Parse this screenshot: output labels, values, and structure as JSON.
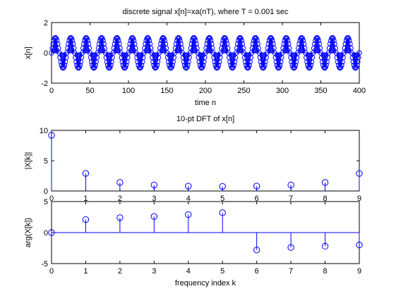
{
  "chart_data": [
    {
      "type": "scatter",
      "subtype": "stem",
      "title": "discrete signal x[n]=xa(nT), where T = 0.001 sec",
      "xlabel": "time n",
      "ylabel": "x[n]",
      "xlim": [
        0,
        400
      ],
      "ylim": [
        -2,
        2
      ],
      "xticks": [
        "0",
        "50",
        "100",
        "150",
        "200",
        "250",
        "300",
        "350",
        "400"
      ],
      "yticks": [
        "-2",
        "0",
        "2"
      ],
      "series": [
        {
          "color": "#0000ff",
          "marker": "circle",
          "n": [
            0,
            1,
            2,
            3,
            4,
            5,
            6,
            7,
            8,
            9,
            10,
            11,
            12,
            13,
            14,
            15,
            16,
            17,
            18,
            19,
            20,
            21,
            22,
            23,
            24,
            25,
            26,
            27,
            28,
            29,
            30,
            31,
            32,
            33,
            34,
            35,
            36,
            37,
            38,
            39,
            40,
            41,
            42,
            43,
            44,
            45,
            46,
            47,
            48,
            49,
            50,
            51,
            52,
            53,
            54,
            55,
            56,
            57,
            58,
            59,
            60,
            61,
            62,
            63,
            64,
            65,
            66,
            67,
            68,
            69,
            70,
            71,
            72,
            73,
            74,
            75,
            76,
            77,
            78,
            79,
            80,
            81,
            82,
            83,
            84,
            85,
            86,
            87,
            88,
            89,
            90,
            91,
            92,
            93,
            94,
            95,
            96,
            97,
            98,
            99,
            100,
            101,
            102,
            103,
            104,
            105,
            106,
            107,
            108,
            109,
            110,
            111,
            112,
            113,
            114,
            115,
            116,
            117,
            118,
            119,
            120,
            121,
            122,
            123,
            124,
            125,
            126,
            127,
            128,
            129,
            130,
            131,
            132,
            133,
            134,
            135,
            136,
            137,
            138,
            139,
            140,
            141,
            142,
            143,
            144,
            145,
            146,
            147,
            148,
            149,
            150,
            151,
            152,
            153,
            154,
            155,
            156,
            157,
            158,
            159,
            160,
            161,
            162,
            163,
            164,
            165,
            166,
            167,
            168,
            169,
            170,
            171,
            172,
            173,
            174,
            175,
            176,
            177,
            178,
            179,
            180,
            181,
            182,
            183,
            184,
            185,
            186,
            187,
            188,
            189,
            190,
            191,
            192,
            193,
            194,
            195,
            196,
            197,
            198,
            199,
            200,
            201,
            202,
            203,
            204,
            205,
            206,
            207,
            208,
            209,
            210,
            211,
            212,
            213,
            214,
            215,
            216,
            217,
            218,
            219,
            220,
            221,
            222,
            223,
            224,
            225,
            226,
            227,
            228,
            229,
            230,
            231,
            232,
            233,
            234,
            235,
            236,
            237,
            238,
            239,
            240,
            241,
            242,
            243,
            244,
            245,
            246,
            247,
            248,
            249,
            250,
            251,
            252,
            253,
            254,
            255,
            256,
            257,
            258,
            259,
            260,
            261,
            262,
            263,
            264,
            265,
            266,
            267,
            268,
            269,
            270,
            271,
            272,
            273,
            274,
            275,
            276,
            277,
            278,
            279,
            280,
            281,
            282,
            283,
            284,
            285,
            286,
            287,
            288,
            289,
            290,
            291,
            292,
            293,
            294,
            295,
            296,
            297,
            298,
            299,
            300,
            301,
            302,
            303,
            304,
            305,
            306,
            307,
            308,
            309,
            310,
            311,
            312,
            313,
            314,
            315,
            316,
            317,
            318,
            319,
            320,
            321,
            322,
            323,
            324,
            325,
            326,
            327,
            328,
            329,
            330,
            331,
            332,
            333,
            334,
            335,
            336,
            337,
            338,
            339,
            340,
            341,
            342,
            343,
            344,
            345,
            346,
            347,
            348,
            349,
            350,
            351,
            352,
            353,
            354,
            355,
            356,
            357,
            358,
            359,
            360,
            361,
            362,
            363,
            364,
            365,
            366,
            367,
            368,
            369,
            370,
            371,
            372,
            373,
            374,
            375,
            376,
            377,
            378,
            379,
            380,
            381,
            382,
            383,
            384,
            385,
            386,
            387,
            388,
            389,
            390,
            391,
            392,
            393,
            394,
            395,
            396,
            397,
            398,
            399,
            400
          ],
          "x": [
            0,
            0.309,
            0.588,
            0.809,
            0.951,
            1,
            0.951,
            0.809,
            0.588,
            0.309,
            0,
            -0.309,
            -0.588,
            -0.809,
            -0.951,
            -1,
            -0.951,
            -0.809,
            -0.588,
            -0.309,
            0,
            0.309,
            0.588,
            0.809,
            0.951,
            1,
            0.951,
            0.809,
            0.588,
            0.309,
            0,
            -0.309,
            -0.588,
            -0.809,
            -0.951,
            -1,
            -0.951,
            -0.809,
            -0.588,
            -0.309,
            0,
            0.309,
            0.588,
            0.809,
            0.951,
            1,
            0.951,
            0.809,
            0.588,
            0.309,
            0,
            -0.309,
            -0.588,
            -0.809,
            -0.951,
            -1,
            -0.951,
            -0.809,
            -0.588,
            -0.309,
            0,
            0.309,
            0.588,
            0.809,
            0.951,
            1,
            0.951,
            0.809,
            0.588,
            0.309,
            0,
            -0.309,
            -0.588,
            -0.809,
            -0.951,
            -1,
            -0.951,
            -0.809,
            -0.588,
            -0.309,
            0,
            0.309,
            0.588,
            0.809,
            0.951,
            1,
            0.951,
            0.809,
            0.588,
            0.309,
            0,
            -0.309,
            -0.588,
            -0.809,
            -0.951,
            -1,
            -0.951,
            -0.809,
            -0.588,
            -0.309,
            0,
            0.309,
            0.588,
            0.809,
            0.951,
            1,
            0.951,
            0.809,
            0.588,
            0.309,
            0,
            -0.309,
            -0.588,
            -0.809,
            -0.951,
            -1,
            -0.951,
            -0.809,
            -0.588,
            -0.309,
            0,
            0.309,
            0.588,
            0.809,
            0.951,
            1,
            0.951,
            0.809,
            0.588,
            0.309,
            0,
            -0.309,
            -0.588,
            -0.809,
            -0.951,
            -1,
            -0.951,
            -0.809,
            -0.588,
            -0.309,
            0,
            0.309,
            0.588,
            0.809,
            0.951,
            1,
            0.951,
            0.809,
            0.588,
            0.309,
            0,
            -0.309,
            -0.588,
            -0.809,
            -0.951,
            -1,
            -0.951,
            -0.809,
            -0.588,
            -0.309,
            0,
            0.309,
            0.588,
            0.809,
            0.951,
            1,
            0.951,
            0.809,
            0.588,
            0.309,
            0,
            -0.309,
            -0.588,
            -0.809,
            -0.951,
            -1,
            -0.951,
            -0.809,
            -0.588,
            -0.309,
            0,
            0.309,
            0.588,
            0.809,
            0.951,
            1,
            0.951,
            0.809,
            0.588,
            0.309,
            0,
            -0.309,
            -0.588,
            -0.809,
            -0.951,
            -1,
            -0.951,
            -0.809,
            -0.588,
            -0.309,
            0,
            0.309,
            0.588,
            0.809,
            0.951,
            1,
            0.951,
            0.809,
            0.588,
            0.309,
            0,
            -0.309,
            -0.588,
            -0.809,
            -0.951,
            -1,
            -0.951,
            -0.809,
            -0.588,
            -0.309,
            0,
            0.309,
            0.588,
            0.809,
            0.951,
            1,
            0.951,
            0.809,
            0.588,
            0.309,
            0,
            -0.309,
            -0.588,
            -0.809,
            -0.951,
            -1,
            -0.951,
            -0.809,
            -0.588,
            -0.309,
            0,
            0.309,
            0.588,
            0.809,
            0.951,
            1,
            0.951,
            0.809,
            0.588,
            0.309,
            0,
            -0.309,
            -0.588,
            -0.809,
            -0.951,
            -1,
            -0.951,
            -0.809,
            -0.588,
            -0.309,
            0,
            0.309,
            0.588,
            0.809,
            0.951,
            1,
            0.951,
            0.809,
            0.588,
            0.309,
            0,
            -0.309,
            -0.588,
            -0.809,
            -0.951,
            -1,
            -0.951,
            -0.809,
            -0.588,
            -0.309,
            0,
            0.309,
            0.588,
            0.809,
            0.951,
            1,
            0.951,
            0.809,
            0.588,
            0.309,
            0,
            -0.309,
            -0.588,
            -0.809,
            -0.951,
            -1,
            -0.951,
            -0.809,
            -0.588,
            -0.309,
            0,
            0.309,
            0.588,
            0.809,
            0.951,
            1,
            0.951,
            0.809,
            0.588,
            0.309,
            0,
            -0.309,
            -0.588,
            -0.809,
            -0.951,
            -1,
            -0.951,
            -0.809,
            -0.588,
            -0.309,
            0,
            0.309,
            0.588,
            0.809,
            0.951,
            1,
            0.951,
            0.809,
            0.588,
            0.309,
            0,
            -0.309,
            -0.588,
            -0.809,
            -0.951,
            -1,
            -0.951,
            -0.809,
            -0.588,
            -0.309,
            0,
            0.309,
            0.588,
            0.809,
            0.951,
            1,
            0.951,
            0.809,
            0.588,
            0.309,
            0,
            -0.309,
            -0.588,
            -0.809,
            -0.951,
            -1,
            -0.951,
            -0.809,
            -0.588,
            -0.309,
            0,
            0.309,
            0.588,
            0.809,
            0.951,
            1,
            0.951,
            0.809,
            0.588,
            0.309,
            0,
            -0.309,
            -0.588,
            -0.809,
            -0.951,
            -1,
            -0.951,
            -0.809,
            -0.588,
            -0.309,
            0,
            0.309,
            0.588,
            0.809,
            0.951,
            1,
            0.951,
            0.809,
            0.588,
            0.309,
            0,
            -0.309,
            -0.588,
            -0.809,
            -0.951,
            -1,
            -0.951,
            -0.809,
            -0.588,
            -0.309,
            0
          ]
        }
      ]
    },
    {
      "type": "scatter",
      "subtype": "stem",
      "title": "10-pt DFT of x[n]",
      "xlabel": "",
      "ylabel": "|X[k]|",
      "xlim": [
        0,
        9
      ],
      "ylim": [
        0,
        10
      ],
      "xticks": [
        "0",
        "1",
        "2",
        "3",
        "4",
        "5",
        "6",
        "7",
        "8",
        "9"
      ],
      "yticks": [
        "0",
        "5",
        "10"
      ],
      "series": [
        {
          "color": "#0000ff",
          "marker": "circle",
          "x": [
            0,
            1,
            2,
            3,
            4,
            5,
            6,
            7,
            8,
            9
          ],
          "y": [
            9.2,
            2.9,
            1.4,
            1.0,
            0.8,
            0.75,
            0.8,
            1.0,
            1.4,
            2.9
          ]
        }
      ]
    },
    {
      "type": "scatter",
      "subtype": "stem",
      "title": "",
      "xlabel": "frequency index k",
      "ylabel": "arg(X[k])",
      "xlim": [
        0,
        9
      ],
      "ylim": [
        -5,
        5
      ],
      "xticks": [
        "0",
        "1",
        "2",
        "3",
        "4",
        "5",
        "6",
        "7",
        "8",
        "9"
      ],
      "yticks": [
        "-5",
        "0",
        "5"
      ],
      "series": [
        {
          "color": "#0000ff",
          "marker": "circle",
          "x": [
            0,
            1,
            2,
            3,
            4,
            5,
            6,
            7,
            8,
            9
          ],
          "y": [
            0,
            2.1,
            2.4,
            2.6,
            2.9,
            3.2,
            -2.8,
            -2.4,
            -2.2,
            -2.0
          ]
        }
      ]
    }
  ]
}
